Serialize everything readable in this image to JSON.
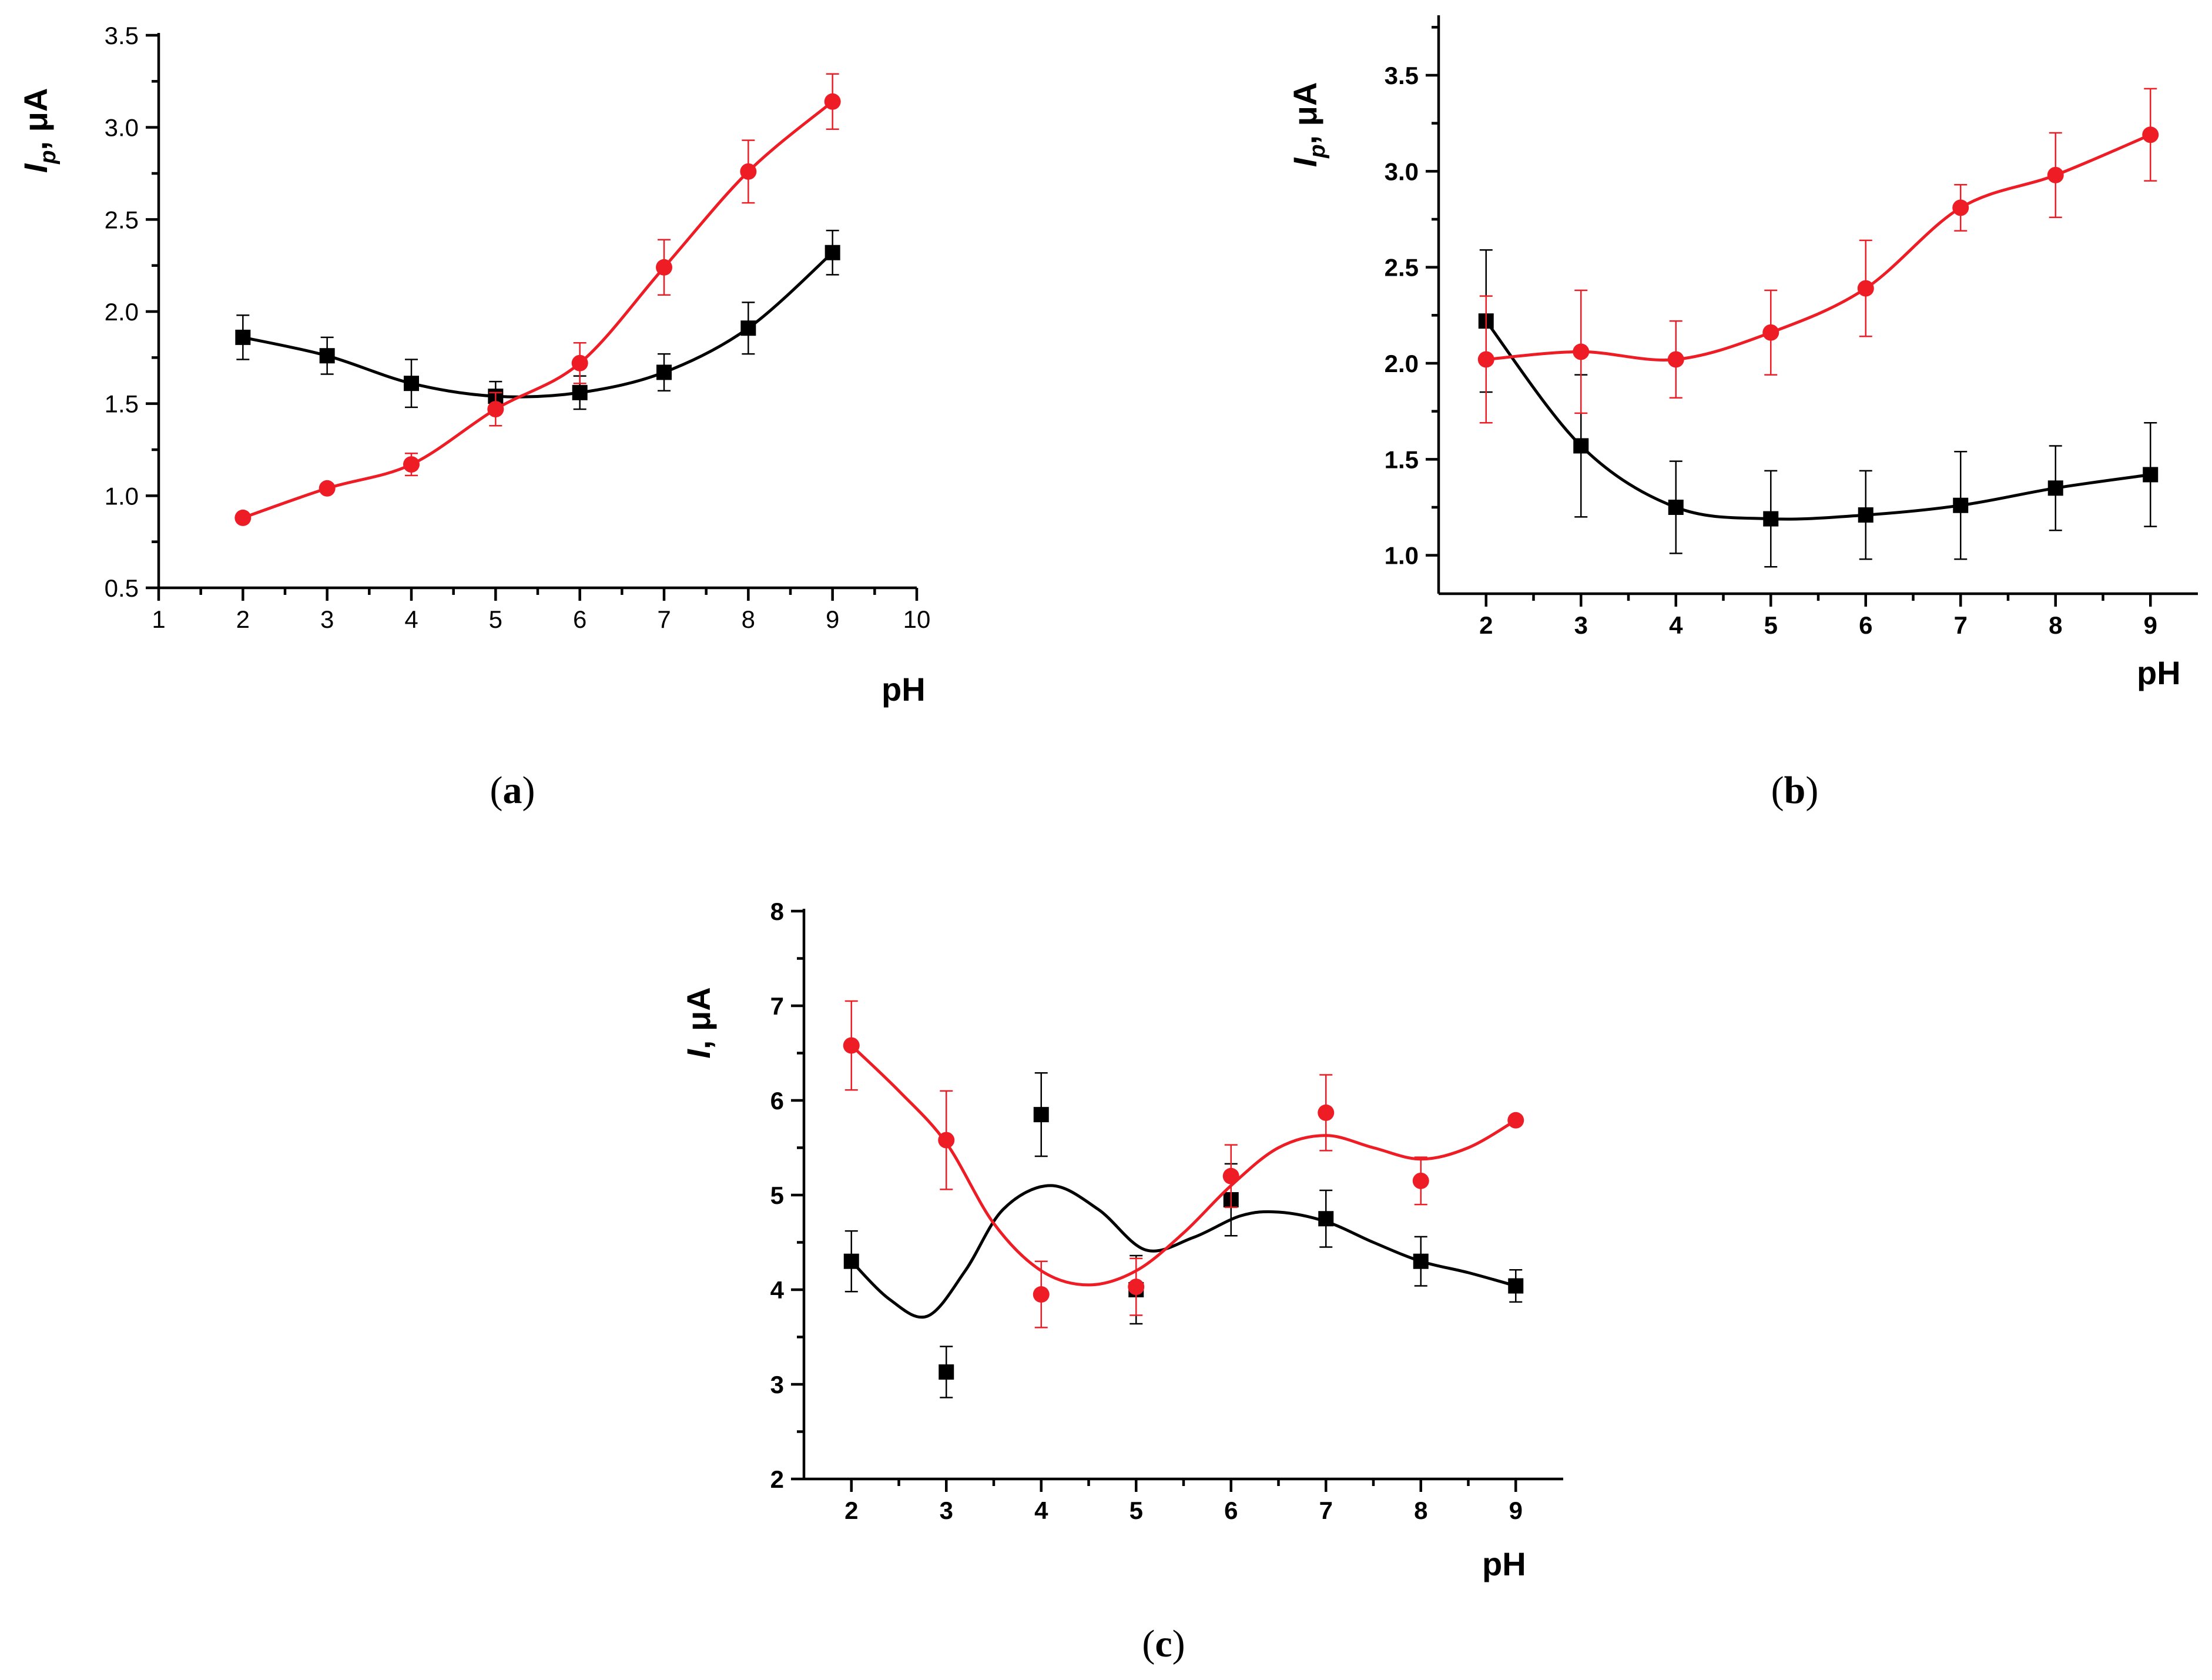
{
  "figure": {
    "panel_labels": [
      "a",
      "b",
      "c"
    ]
  },
  "chart_data": [
    {
      "id": "a",
      "type": "line",
      "panel_label": "a",
      "xlabel": "pH",
      "ylabel": {
        "symbol": "I",
        "subscript": "p",
        "unit": ", μA"
      },
      "xlim": [
        1,
        10
      ],
      "ylim": [
        0.5,
        3.5
      ],
      "xticks": [
        1,
        2,
        3,
        4,
        5,
        6,
        7,
        8,
        9,
        10
      ],
      "yticks": [
        "0.5",
        "1.0",
        "1.5",
        "2.0",
        "2.5",
        "3.0",
        "3.5"
      ],
      "tick_style": "normal",
      "series": [
        {
          "name": "black-squares",
          "color": "#000000",
          "marker": "square",
          "x": [
            2,
            3,
            4,
            5,
            6,
            7,
            8,
            9
          ],
          "values": [
            1.86,
            1.76,
            1.61,
            1.54,
            1.56,
            1.67,
            1.91,
            2.32
          ],
          "errors": [
            0.12,
            0.1,
            0.13,
            0.08,
            0.09,
            0.1,
            0.14,
            0.12
          ]
        },
        {
          "name": "red-circles",
          "color": "#ee1c24",
          "marker": "circle",
          "x": [
            2,
            3,
            4,
            5,
            6,
            7,
            8,
            9
          ],
          "values": [
            0.88,
            1.04,
            1.17,
            1.47,
            1.72,
            2.24,
            2.76,
            3.14
          ],
          "errors": [
            0.0,
            0.0,
            0.06,
            0.09,
            0.11,
            0.15,
            0.17,
            0.15
          ]
        }
      ]
    },
    {
      "id": "b",
      "type": "line",
      "panel_label": "b",
      "xlabel": "pH",
      "ylabel": {
        "symbol": "I",
        "subscript": "p",
        "unit": ", μA"
      },
      "xlim": [
        1.5,
        9.5
      ],
      "ylim": [
        0.8,
        3.8
      ],
      "xticks": [
        2,
        3,
        4,
        5,
        6,
        7,
        8,
        9
      ],
      "yticks": [
        "1.0",
        "1.5",
        "2.0",
        "2.5",
        "3.0",
        "3.5"
      ],
      "tick_style": "bold",
      "series": [
        {
          "name": "black-squares",
          "color": "#000000",
          "marker": "square",
          "x": [
            2,
            3,
            4,
            5,
            6,
            7,
            8,
            9
          ],
          "values": [
            2.22,
            1.57,
            1.25,
            1.19,
            1.21,
            1.26,
            1.35,
            1.42
          ],
          "errors": [
            0.37,
            0.37,
            0.24,
            0.25,
            0.23,
            0.28,
            0.22,
            0.27
          ]
        },
        {
          "name": "red-circles",
          "color": "#ee1c24",
          "marker": "circle",
          "x": [
            2,
            3,
            4,
            5,
            6,
            7,
            8,
            9
          ],
          "values": [
            2.02,
            2.06,
            2.02,
            2.16,
            2.39,
            2.81,
            2.98,
            3.19
          ],
          "errors": [
            0.33,
            0.32,
            0.2,
            0.22,
            0.25,
            0.12,
            0.22,
            0.24
          ]
        }
      ]
    },
    {
      "id": "c",
      "type": "line",
      "panel_label": "c",
      "xlabel": "pH",
      "ylabel": {
        "symbol": "I",
        "subscript": "",
        "unit": ", μA"
      },
      "xlim": [
        1.5,
        9.5
      ],
      "ylim": [
        2,
        8
      ],
      "xticks": [
        2,
        3,
        4,
        5,
        6,
        7,
        8,
        9
      ],
      "yticks": [
        "2",
        "3",
        "4",
        "5",
        "6",
        "7",
        "8"
      ],
      "tick_style": "bold",
      "series": [
        {
          "name": "black-squares",
          "color": "#000000",
          "marker": "square",
          "x": [
            2,
            3,
            4,
            5,
            6,
            7,
            8,
            9
          ],
          "values": [
            4.3,
            3.13,
            5.85,
            4.0,
            4.95,
            4.75,
            4.3,
            4.04
          ],
          "errors": [
            0.32,
            0.27,
            0.44,
            0.36,
            0.38,
            0.3,
            0.26,
            0.17
          ],
          "curve": [
            [
              2,
              4.3
            ],
            [
              2.4,
              3.9
            ],
            [
              2.8,
              3.72
            ],
            [
              3.2,
              4.2
            ],
            [
              3.6,
              4.85
            ],
            [
              4.1,
              5.1
            ],
            [
              4.6,
              4.85
            ],
            [
              5.1,
              4.42
            ],
            [
              5.6,
              4.55
            ],
            [
              6.1,
              4.78
            ],
            [
              6.5,
              4.82
            ],
            [
              7.0,
              4.72
            ],
            [
              7.5,
              4.5
            ],
            [
              8.0,
              4.3
            ],
            [
              8.5,
              4.18
            ],
            [
              9,
              4.04
            ]
          ]
        },
        {
          "name": "red-circles",
          "color": "#ee1c24",
          "marker": "circle",
          "x": [
            2,
            3,
            4,
            5,
            6,
            7,
            8,
            9
          ],
          "values": [
            6.58,
            5.58,
            3.95,
            4.03,
            5.2,
            5.87,
            5.15,
            5.79
          ],
          "errors": [
            0.47,
            0.52,
            0.35,
            0.3,
            0.33,
            0.4,
            0.25,
            0.0
          ],
          "curve": [
            [
              2,
              6.58
            ],
            [
              2.5,
              6.1
            ],
            [
              3.0,
              5.55
            ],
            [
              3.5,
              4.7
            ],
            [
              4.0,
              4.2
            ],
            [
              4.5,
              4.05
            ],
            [
              5.0,
              4.2
            ],
            [
              5.5,
              4.6
            ],
            [
              6.0,
              5.1
            ],
            [
              6.5,
              5.5
            ],
            [
              7.0,
              5.63
            ],
            [
              7.5,
              5.5
            ],
            [
              8.0,
              5.38
            ],
            [
              8.5,
              5.5
            ],
            [
              9,
              5.79
            ]
          ]
        }
      ]
    }
  ]
}
